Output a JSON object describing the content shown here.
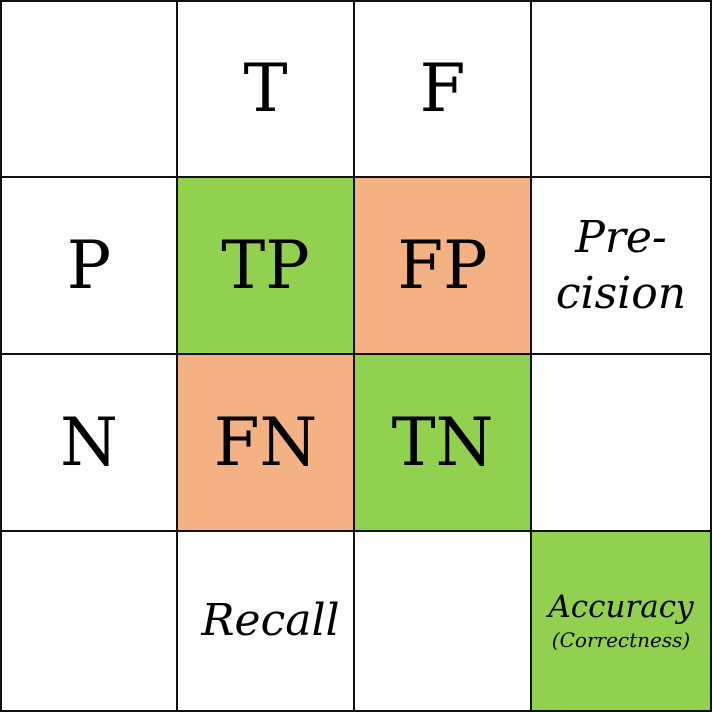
{
  "colors": {
    "correct": "#92d050",
    "incorrect": "#f4b183",
    "blank": "#ffffff"
  },
  "header": {
    "col_true": "T",
    "col_false": "F"
  },
  "rows": {
    "positive": "P",
    "negative": "N"
  },
  "matrix": {
    "tp": "TP",
    "fp": "FP",
    "fn": "FN",
    "tn": "TN"
  },
  "metrics": {
    "precision_line1": "Pre-",
    "precision_line2": "cision",
    "recall": "Recall",
    "accuracy": "Accuracy",
    "accuracy_note": "(Correctness)"
  }
}
